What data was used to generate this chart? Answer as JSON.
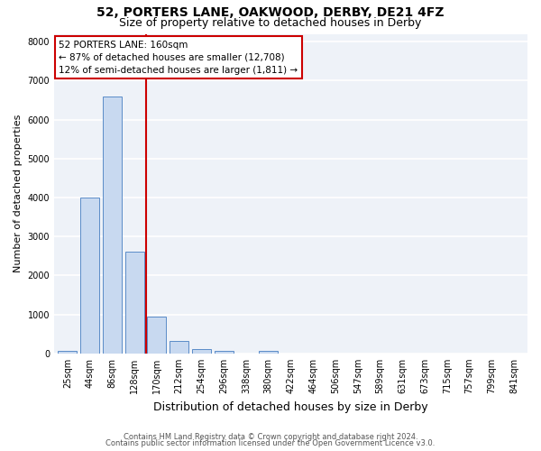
{
  "title": "52, PORTERS LANE, OAKWOOD, DERBY, DE21 4FZ",
  "subtitle": "Size of property relative to detached houses in Derby",
  "xlabel": "Distribution of detached houses by size in Derby",
  "ylabel": "Number of detached properties",
  "bar_labels": [
    "25sqm",
    "44sqm",
    "86sqm",
    "128sqm",
    "170sqm",
    "212sqm",
    "254sqm",
    "296sqm",
    "338sqm",
    "380sqm",
    "422sqm",
    "464sqm",
    "506sqm",
    "547sqm",
    "589sqm",
    "631sqm",
    "673sqm",
    "715sqm",
    "757sqm",
    "799sqm",
    "841sqm"
  ],
  "bar_values": [
    75,
    4000,
    6600,
    2620,
    950,
    330,
    120,
    75,
    0,
    70,
    0,
    0,
    0,
    0,
    0,
    0,
    0,
    0,
    0,
    0,
    0
  ],
  "bar_color": "#c8d9f0",
  "bar_edge_color": "#5b8cc8",
  "vline_color": "#cc0000",
  "vline_pos": 3.5,
  "annotation_text": "52 PORTERS LANE: 160sqm\n← 87% of detached houses are smaller (12,708)\n12% of semi-detached houses are larger (1,811) →",
  "annotation_box_facecolor": "#ffffff",
  "annotation_box_edgecolor": "#cc0000",
  "ylim": [
    0,
    8200
  ],
  "yticks": [
    0,
    1000,
    2000,
    3000,
    4000,
    5000,
    6000,
    7000,
    8000
  ],
  "background_color": "#eef2f8",
  "grid_color": "#ffffff",
  "footer_line1": "Contains HM Land Registry data © Crown copyright and database right 2024.",
  "footer_line2": "Contains public sector information licensed under the Open Government Licence v3.0.",
  "title_fontsize": 10,
  "subtitle_fontsize": 9,
  "xlabel_fontsize": 9,
  "ylabel_fontsize": 8,
  "annotation_fontsize": 7.5,
  "tick_fontsize": 7,
  "footer_fontsize": 6
}
